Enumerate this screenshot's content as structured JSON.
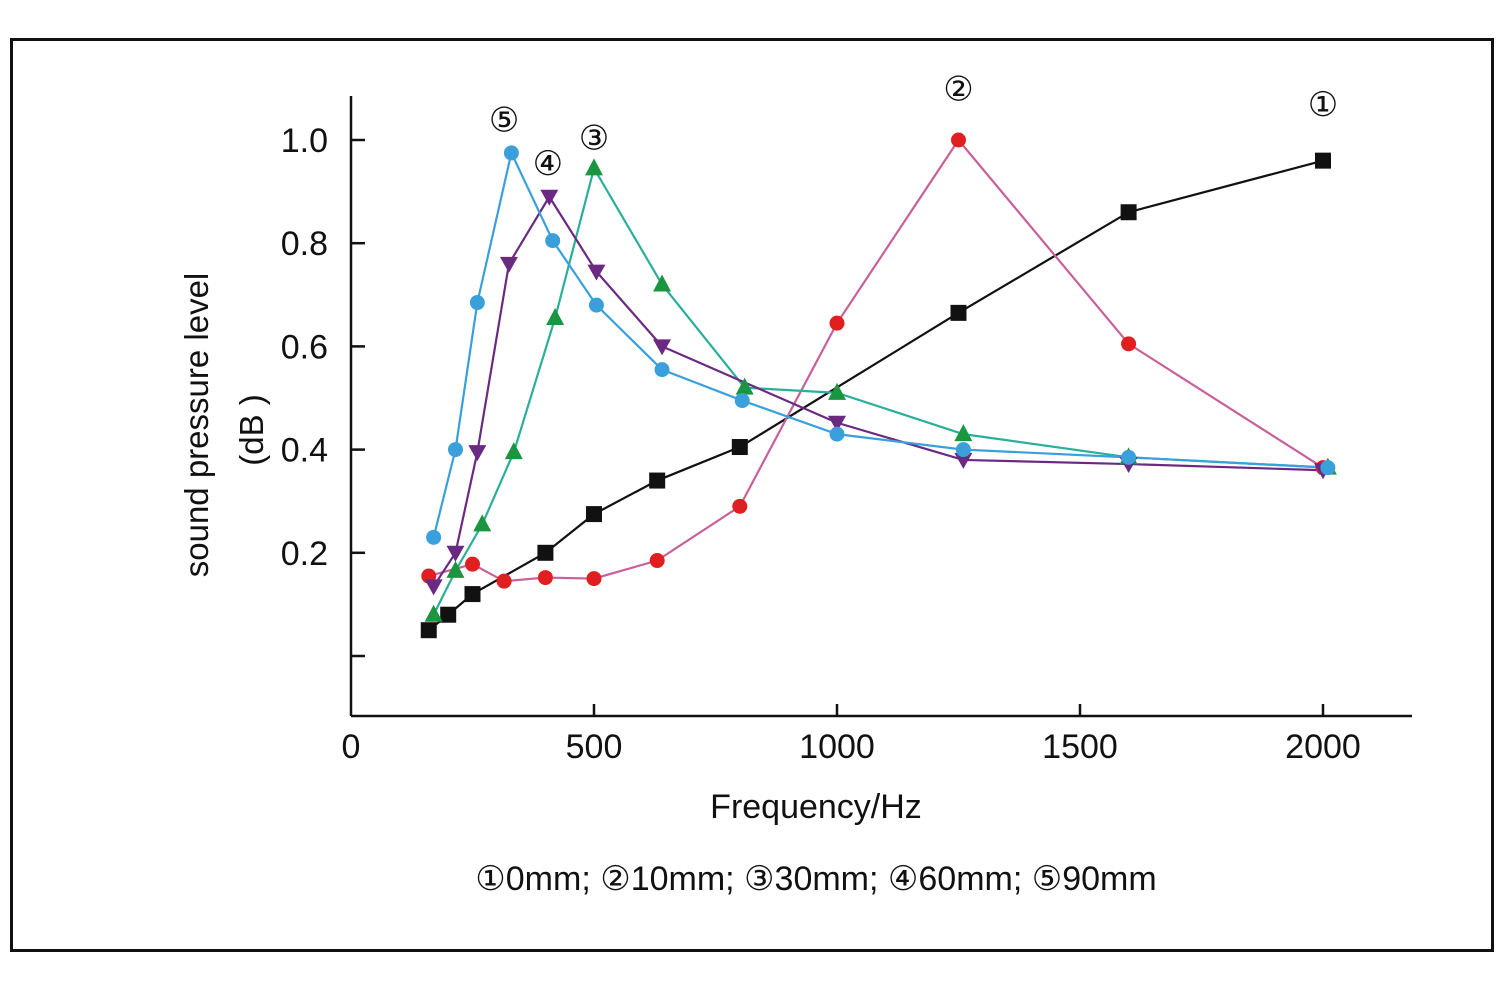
{
  "chart_data": {
    "type": "line",
    "title": "",
    "xlabel": "Frequency/Hz",
    "ylabel_line1": "sound pressure level",
    "ylabel_line2": "(dB )",
    "xlim": [
      0,
      2220
    ],
    "ylim": [
      -0.12,
      1.08
    ],
    "x_ticks": [
      0,
      500,
      1000,
      1500,
      2000
    ],
    "x_tick_labels": [
      "0",
      "500",
      "1000",
      "1500",
      "2000"
    ],
    "y_ticks": [
      0.0,
      0.2,
      0.4,
      0.6,
      0.8,
      1.0
    ],
    "y_tick_labels": [
      "",
      "0.2",
      "0.4",
      "0.6",
      "0.8",
      "1.0"
    ],
    "legend_text": "①0mm; ②10mm; ③30mm; ④60mm; ⑤90mm",
    "series": [
      {
        "name": "0mm",
        "label": "①",
        "color": "#111111",
        "marker": "square",
        "label_pos": [
          2000,
          1.07
        ],
        "x": [
          160,
          200,
          250,
          400,
          500,
          630,
          800,
          1250,
          1600,
          2000
        ],
        "y": [
          0.05,
          0.08,
          0.12,
          0.2,
          0.275,
          0.34,
          0.405,
          0.665,
          0.86,
          0.96
        ]
      },
      {
        "name": "10mm",
        "label": "②",
        "color": "#e02020",
        "line_color": "#c8609a",
        "marker": "circle",
        "label_pos": [
          1250,
          1.1
        ],
        "x": [
          160,
          250,
          315,
          400,
          500,
          630,
          800,
          1000,
          1250,
          1600,
          2000
        ],
        "y": [
          0.155,
          0.178,
          0.145,
          0.152,
          0.15,
          0.185,
          0.29,
          0.645,
          1.0,
          0.605,
          0.365
        ]
      },
      {
        "name": "30mm",
        "label": "③",
        "color": "#1a9640",
        "line_color": "#2aaf9a",
        "marker": "triangle-up",
        "label_pos": [
          500,
          1.005
        ],
        "x": [
          170,
          215,
          270,
          335,
          420,
          500,
          640,
          810,
          1000,
          1260,
          1600,
          2010
        ],
        "y": [
          0.08,
          0.165,
          0.255,
          0.395,
          0.655,
          0.945,
          0.72,
          0.52,
          0.51,
          0.43,
          0.385,
          0.365
        ]
      },
      {
        "name": "60mm",
        "label": "④",
        "color": "#6b2a82",
        "marker": "triangle-down",
        "label_pos": [
          405,
          0.955
        ],
        "x": [
          170,
          215,
          260,
          325,
          408,
          505,
          640,
          1000,
          1260,
          1600,
          2000
        ],
        "y": [
          0.135,
          0.2,
          0.395,
          0.76,
          0.89,
          0.745,
          0.6,
          0.452,
          0.38,
          0.372,
          0.36
        ]
      },
      {
        "name": "90mm",
        "label": "⑤",
        "color": "#3aa0dc",
        "marker": "circle",
        "label_pos": [
          315,
          1.04
        ],
        "x": [
          170,
          215,
          260,
          330,
          415,
          505,
          640,
          805,
          1000,
          1260,
          1600,
          2010
        ],
        "y": [
          0.23,
          0.4,
          0.685,
          0.975,
          0.805,
          0.68,
          0.555,
          0.495,
          0.43,
          0.4,
          0.385,
          0.365
        ]
      }
    ]
  }
}
